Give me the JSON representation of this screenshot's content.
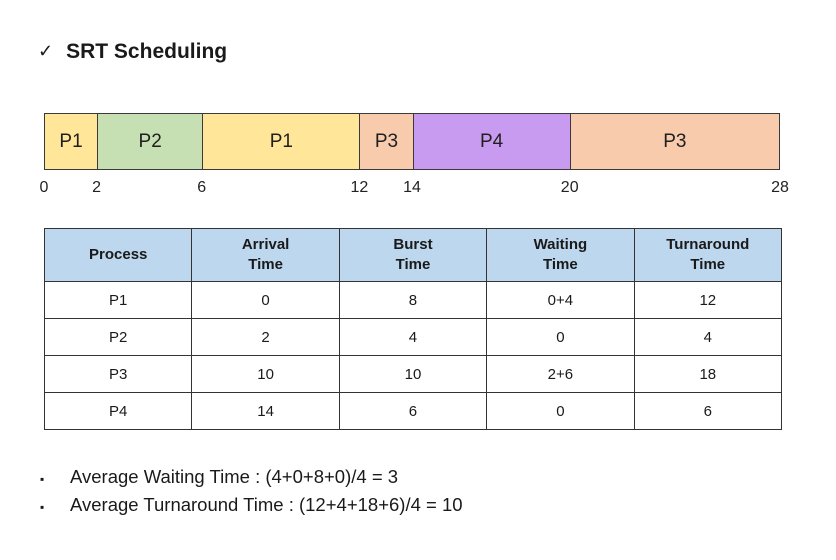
{
  "title": {
    "check": "✓",
    "text": "SRT Scheduling"
  },
  "chart_data": {
    "type": "gantt",
    "title": "SRT scheduling timeline",
    "xlim": [
      0,
      28
    ],
    "ticks": [
      0,
      2,
      6,
      12,
      14,
      20,
      28
    ],
    "segments": [
      {
        "label": "P1",
        "start": 0,
        "end": 2,
        "color": "#FFE699"
      },
      {
        "label": "P2",
        "start": 2,
        "end": 6,
        "color": "#C6E0B4"
      },
      {
        "label": "P1",
        "start": 6,
        "end": 12,
        "color": "#FFE699"
      },
      {
        "label": "P3",
        "start": 12,
        "end": 14,
        "color": "#F8CBAD"
      },
      {
        "label": "P4",
        "start": 14,
        "end": 20,
        "color": "#C99BF0"
      },
      {
        "label": "P3",
        "start": 20,
        "end": 28,
        "color": "#F8CBAD"
      }
    ]
  },
  "table": {
    "header_bg": "#BDD7EE",
    "border_color": "#333333",
    "headers": [
      "Process",
      "Arrival\nTime",
      "Burst\nTime",
      "Waiting\nTime",
      "Turnaround\nTime"
    ],
    "rows": [
      [
        "P1",
        "0",
        "8",
        "0+4",
        "12"
      ],
      [
        "P2",
        "2",
        "4",
        "0",
        "4"
      ],
      [
        "P3",
        "10",
        "10",
        "2+6",
        "18"
      ],
      [
        "P4",
        "14",
        "6",
        "0",
        "6"
      ]
    ]
  },
  "bullets": [
    {
      "marker": "▪",
      "text": "Average Waiting Time : (4+0+8+0)/4 = 3"
    },
    {
      "marker": "▪",
      "text": "Average Turnaround Time : (12+4+18+6)/4 = 10"
    }
  ]
}
